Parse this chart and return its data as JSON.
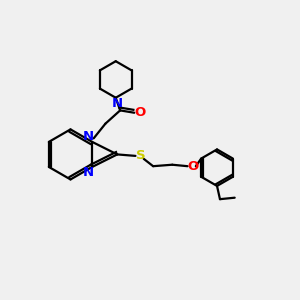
{
  "bg_color": "#f0f0f0",
  "bond_color": "#000000",
  "N_color": "#0000ff",
  "O_color": "#ff0000",
  "S_color": "#cccc00",
  "line_width": 1.6,
  "font_size": 9.5,
  "xlim": [
    0,
    10
  ],
  "ylim": [
    0,
    10
  ]
}
